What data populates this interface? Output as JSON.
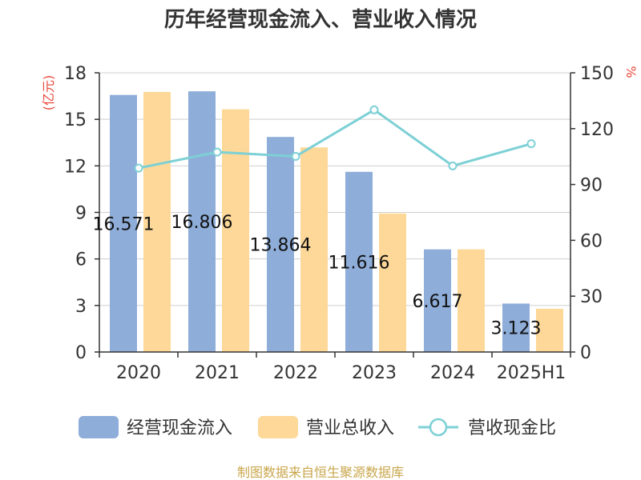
{
  "chart_data": {
    "type": "bar",
    "title": "历年经营现金流入、营业收入情况",
    "categories": [
      "2020",
      "2021",
      "2022",
      "2023",
      "2024",
      "2025H1"
    ],
    "left_axis": {
      "unit": "(亿元)",
      "ylim": [
        0,
        18
      ],
      "ticks": [
        "0",
        "3",
        "6",
        "9",
        "12",
        "15",
        "18"
      ]
    },
    "right_axis": {
      "unit": "%",
      "ylim": [
        0,
        150
      ],
      "ticks": [
        "0",
        "30",
        "60",
        "90",
        "120",
        "150"
      ]
    },
    "grid": true,
    "legend_position": "bottom",
    "series": [
      {
        "name": "经营现金流入",
        "type": "bar",
        "axis": "left",
        "color": "#8eadd9",
        "values": [
          16.571,
          16.806,
          13.864,
          11.616,
          6.617,
          3.123
        ],
        "labels": [
          "16.571",
          "16.806",
          "13.864",
          "11.616",
          "6.617",
          "3.123"
        ]
      },
      {
        "name": "营业总收入",
        "type": "bar",
        "axis": "left",
        "color": "#fdd898",
        "values": [
          16.77,
          15.65,
          13.19,
          8.93,
          6.62,
          2.79
        ]
      },
      {
        "name": "营收现金比",
        "type": "line",
        "axis": "right",
        "color": "#7dd0d5",
        "values": [
          98.8,
          107.4,
          105.1,
          130.1,
          100.0,
          111.9
        ]
      }
    ],
    "source": "制图数据来自恒生聚源数据库"
  }
}
